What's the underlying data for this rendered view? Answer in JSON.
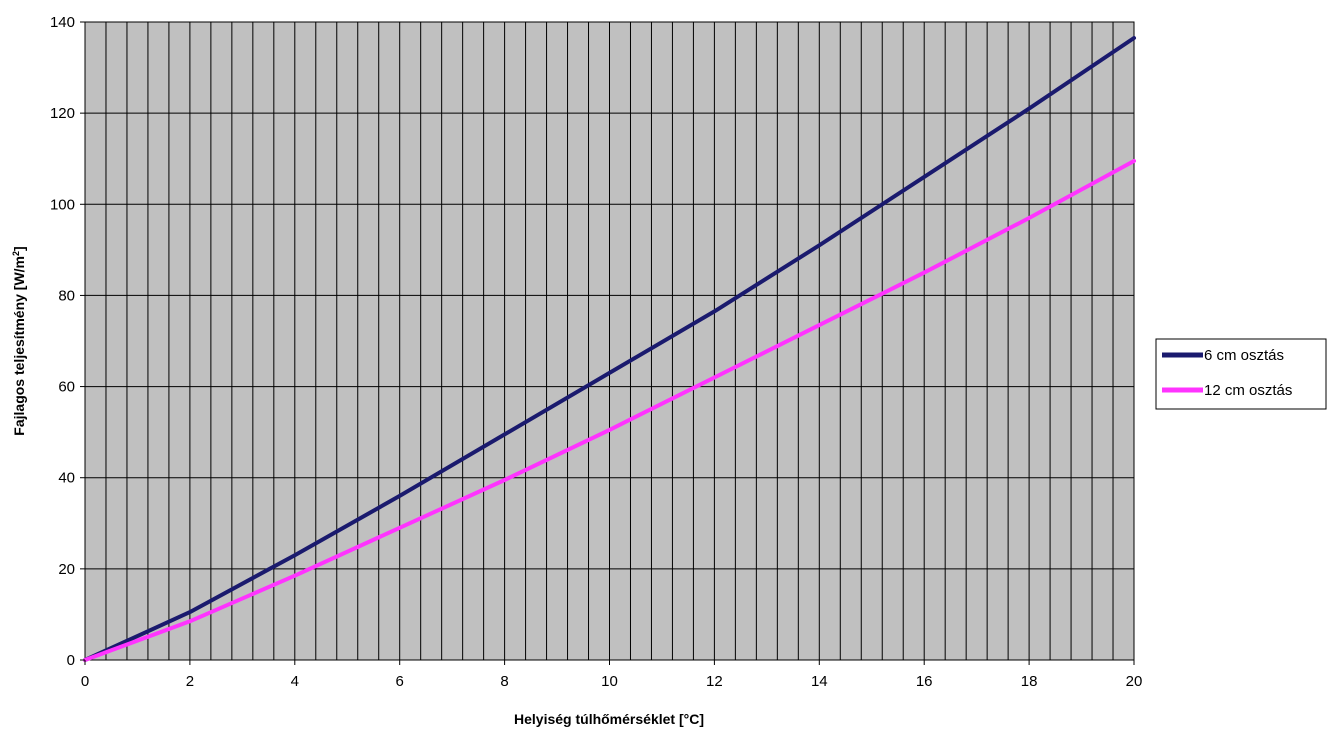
{
  "chart_data": {
    "type": "line",
    "xlabel": "Helyiség túlhőmérséklet [°C]",
    "ylabel_main": "Fajlagos teljesítmény [W/m",
    "ylabel_sup": "2",
    "ylabel_close": "]",
    "xlim": [
      0,
      20
    ],
    "ylim": [
      0,
      140
    ],
    "x_ticks": [
      "0",
      "2",
      "4",
      "6",
      "8",
      "10",
      "12",
      "14",
      "16",
      "18",
      "20"
    ],
    "y_ticks": [
      "0",
      "20",
      "40",
      "60",
      "80",
      "100",
      "120",
      "140"
    ],
    "x_minor_step": 0.4,
    "y_major_step": 20,
    "grid": true,
    "plot_background": "#c0c0c0",
    "legend_position": "right",
    "series": [
      {
        "name": "6 cm osztás",
        "color": "#1a1a6e",
        "x": [
          0,
          2,
          4,
          6,
          8,
          10,
          12,
          14,
          16,
          18,
          20
        ],
        "values": [
          0,
          10.5,
          23,
          36,
          49.5,
          63,
          76.5,
          91,
          106,
          121,
          136.5
        ]
      },
      {
        "name": "12 cm osztás",
        "color": "#ff33ff",
        "x": [
          0,
          2,
          4,
          6,
          8,
          10,
          12,
          14,
          16,
          18,
          20
        ],
        "values": [
          0,
          8.5,
          18.5,
          29,
          39.5,
          50.5,
          62,
          73.5,
          85,
          97,
          109.5
        ]
      }
    ]
  }
}
